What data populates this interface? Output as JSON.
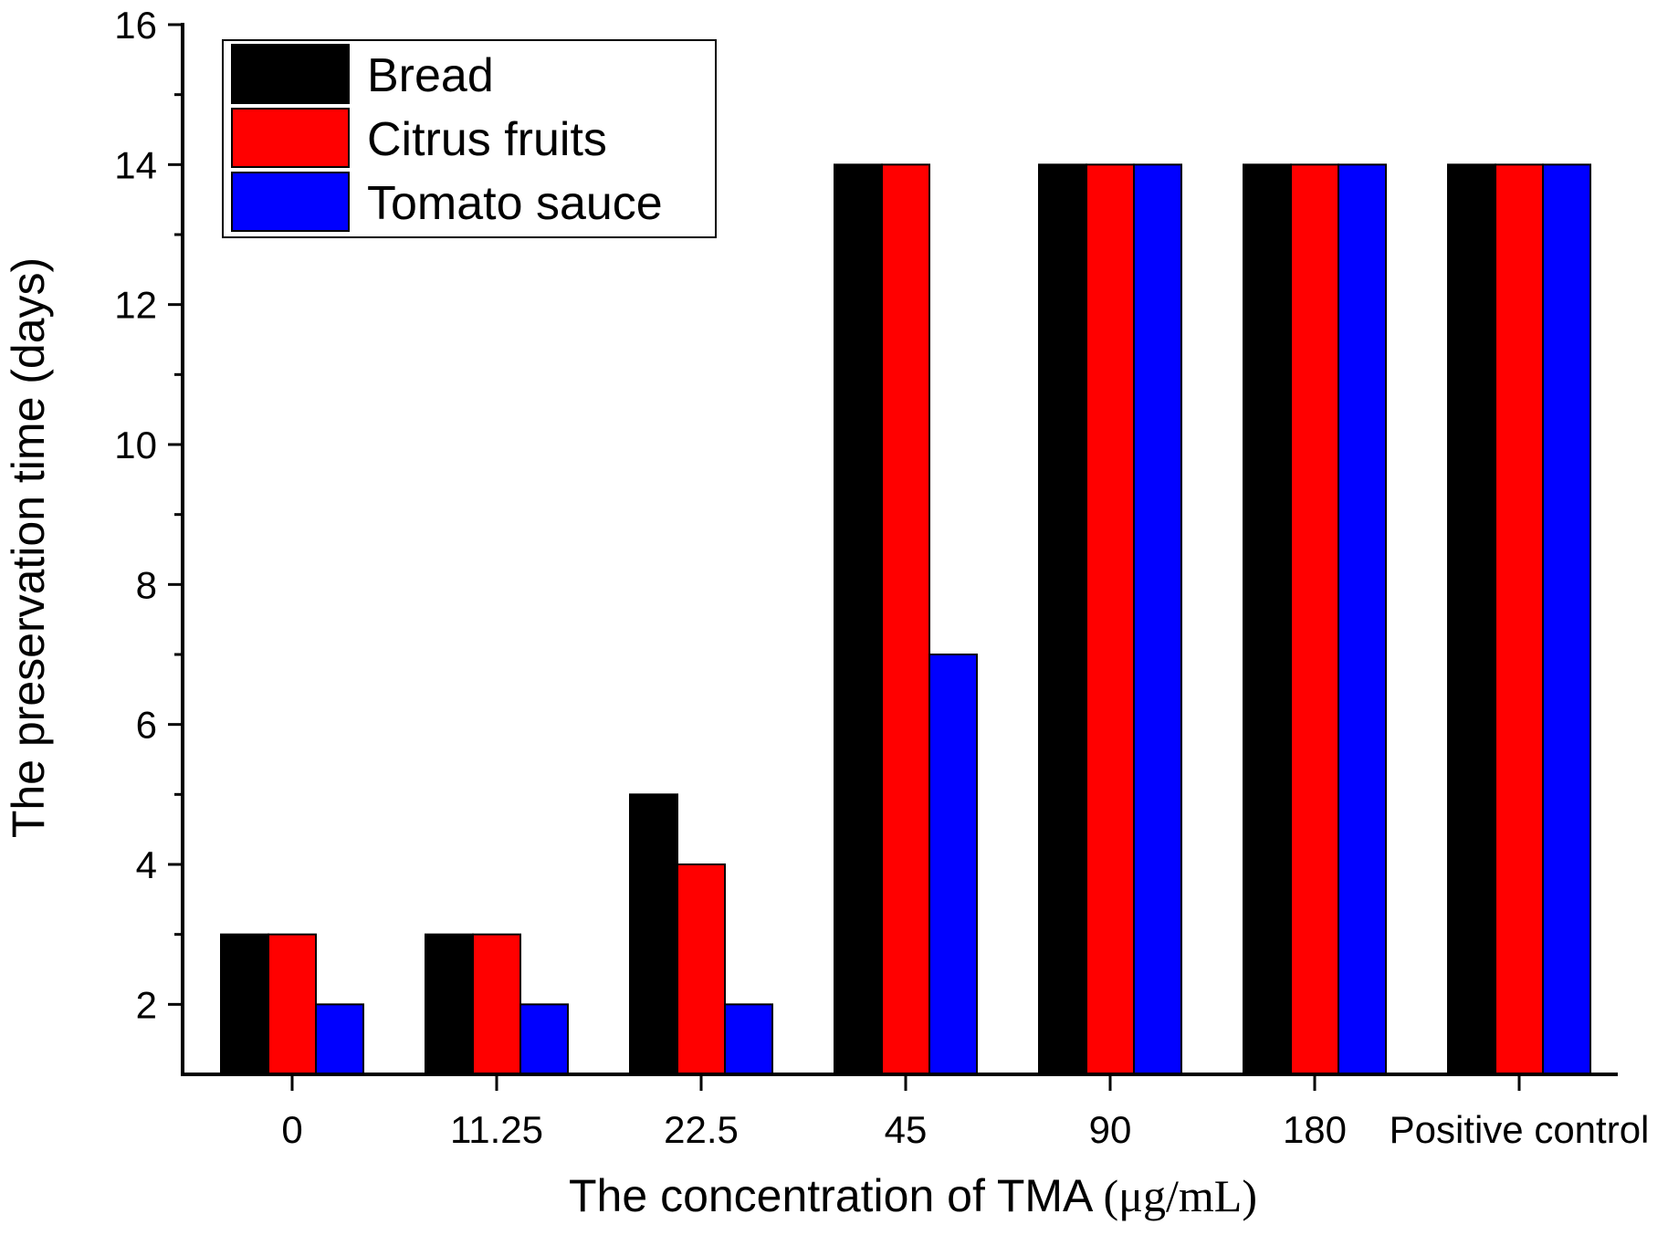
{
  "chart_data": {
    "type": "bar",
    "title": "",
    "xlabel": "The concentration of TMA",
    "xlabel_unit": "(μg/mL)",
    "ylabel": "The preservation time (days)",
    "ylim": [
      1,
      16
    ],
    "yticks": [
      2,
      4,
      6,
      8,
      10,
      12,
      14,
      16
    ],
    "grid": false,
    "legend_position": "top-left",
    "categories": [
      "0",
      "11.25",
      "22.5",
      "45",
      "90",
      "180",
      "Positive control"
    ],
    "series": [
      {
        "name": "Bread",
        "color": "#000000",
        "values": [
          3,
          3,
          5,
          14,
          14,
          14,
          14
        ]
      },
      {
        "name": "Citrus fruits",
        "color": "#ff0000",
        "values": [
          3,
          3,
          4,
          14,
          14,
          14,
          14
        ]
      },
      {
        "name": "Tomato sauce",
        "color": "#0000ff",
        "values": [
          2,
          2,
          2,
          7,
          14,
          14,
          14
        ]
      }
    ]
  }
}
